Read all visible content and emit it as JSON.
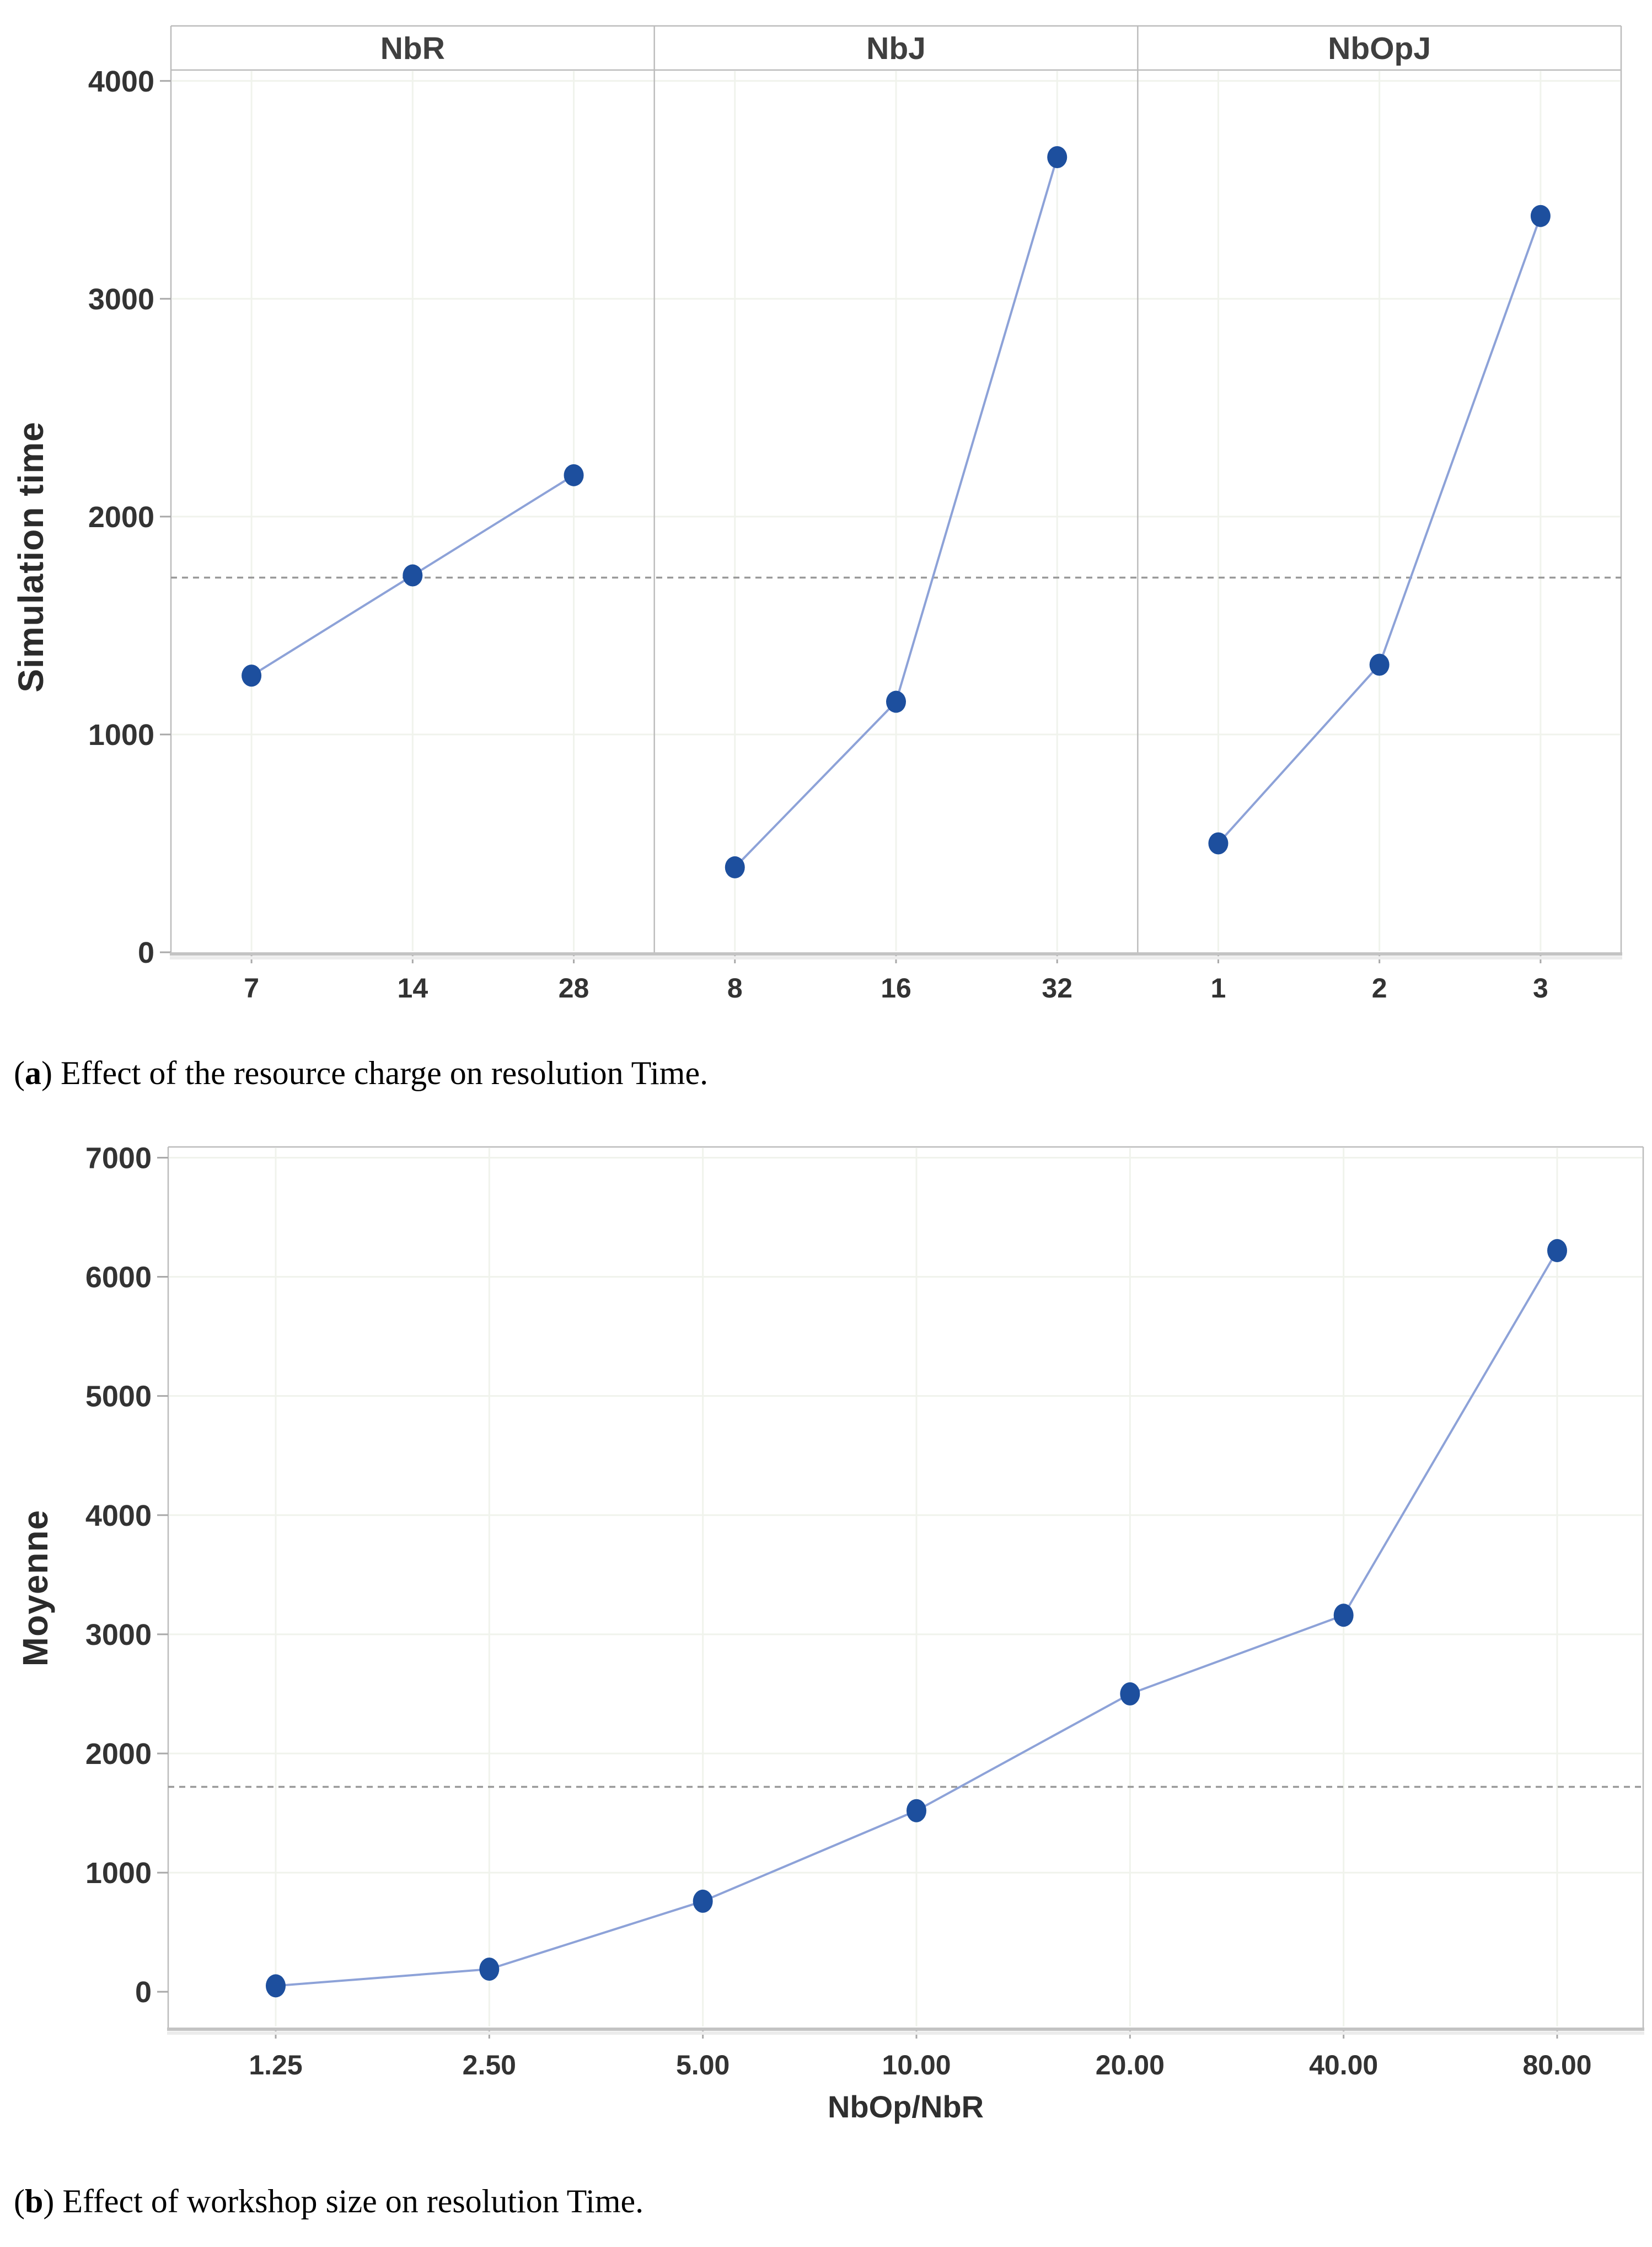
{
  "page": {
    "background": "#ffffff"
  },
  "captions": {
    "a": {
      "open": "(",
      "letter": "a",
      "rest": ") Effect of the resource charge on resolution Time."
    },
    "b": {
      "open": "(",
      "letter": "b",
      "rest": ") Effect of workshop size on resolution Time."
    }
  },
  "style": {
    "marker_color": "#1d4f9e",
    "line_color": "#8da2d8",
    "reference_color": "#9a9a9a",
    "grid_color": "#f0f3ec",
    "axis_color": "#bcbcbc",
    "axis_heavy_color": "#c3c3c3",
    "axis_shadow_color": "#ececec",
    "tick_mark_color": "#a9a9a9",
    "tick_text_color": "#333333",
    "header_text_color": "#3f3f3f",
    "axis_title_color": "#2f2f2f"
  },
  "chart_data": [
    {
      "type": "line",
      "title": "",
      "ylabel": "Simulation time",
      "ylim": [
        0,
        4050
      ],
      "yticks": [
        0,
        1000,
        2000,
        3000,
        4000
      ],
      "reference_line": 1720,
      "grid": true,
      "legend": "none",
      "panels": [
        {
          "header": "NbR",
          "categories": [
            "7",
            "14",
            "28"
          ],
          "values": [
            1270,
            1730,
            2190
          ]
        },
        {
          "header": "NbJ",
          "categories": [
            "8",
            "16",
            "32"
          ],
          "values": [
            390,
            1150,
            3650
          ]
        },
        {
          "header": "NbOpJ",
          "categories": [
            "1",
            "2",
            "3"
          ],
          "values": [
            500,
            1320,
            3380
          ]
        }
      ]
    },
    {
      "type": "line",
      "title": "",
      "xlabel": "NbOp/NbR",
      "ylabel": "Moyenne",
      "ylim": [
        -300,
        7090
      ],
      "yticks": [
        0,
        1000,
        2000,
        3000,
        4000,
        5000,
        6000,
        7000
      ],
      "reference_line": 1720,
      "grid": true,
      "legend": "none",
      "categories": [
        "1.25",
        "2.50",
        "5.00",
        "10.00",
        "20.00",
        "40.00",
        "80.00"
      ],
      "values": [
        50,
        190,
        760,
        1520,
        2500,
        3160,
        6220
      ]
    }
  ]
}
